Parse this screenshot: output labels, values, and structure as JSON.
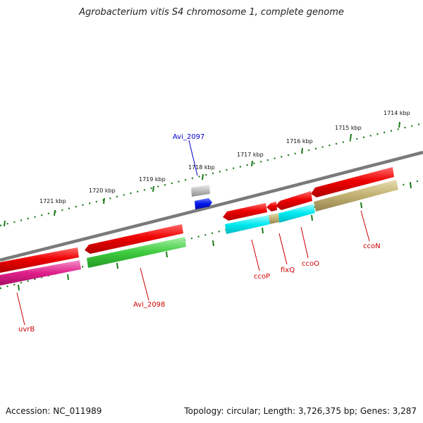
{
  "title": "Agrobacterium vitis S4 chromosome 1, complete genome",
  "footer": {
    "accession": "Accession: NC_011989",
    "summary": "Topology: circular; Length: 3,726,375 bp; Genes: 3,287"
  },
  "scale_ticks": [
    "1714 kbp",
    "1715 kbp",
    "1716 kbp",
    "1717 kbp",
    "1718 kbp",
    "1719 kbp",
    "1720 kbp",
    "1721 kbp"
  ],
  "gene_labels": {
    "avi_2097": "Avi_2097",
    "avi_2098": "Avi_2098",
    "uvrb": "uvrB",
    "ccop": "ccoP",
    "fixq": "fixQ",
    "ccoo": "ccoO",
    "ccon": "ccoN"
  },
  "colors": {
    "cds": "#e8000a",
    "gene_forward_label": "#0000cc",
    "gene_reverse_label": "#cc0000",
    "backbone": "#7d7d7d",
    "tick": "#1a7a1a",
    "cyan_feature": "#00e8ec",
    "green_feature": "#3ecb3e",
    "magenta_feature": "#e0208a",
    "olive_feature": "#bfb070",
    "grey_feature": "#b8b8b8",
    "blue_feature": "#0018e8"
  }
}
